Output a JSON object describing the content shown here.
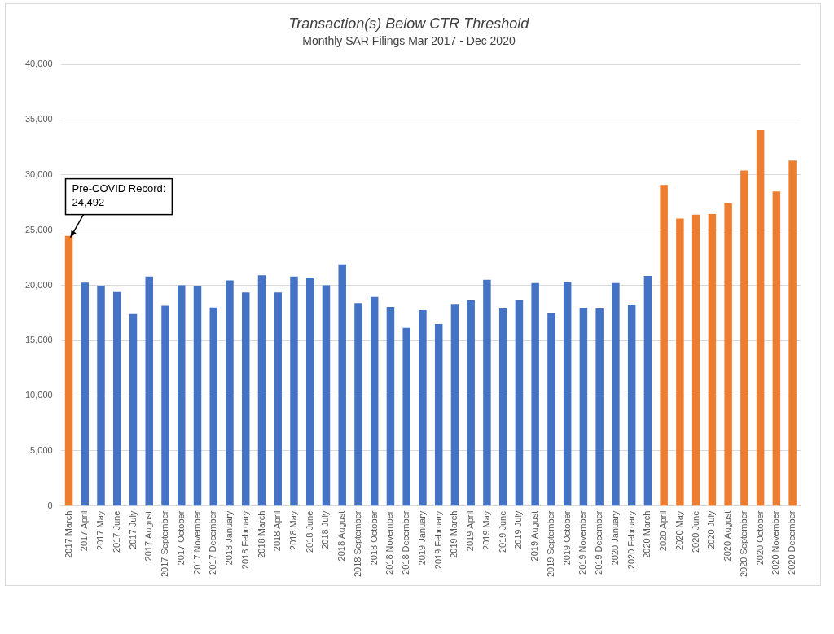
{
  "chart_data": {
    "type": "bar",
    "title": "Transaction(s) Below CTR Threshold",
    "subtitle": "Monthly SAR Filings Mar 2017 - Dec 2020",
    "categories": [
      "2017 March",
      "2017 April",
      "2017 May",
      "2017 June",
      "2017 July",
      "2017 August",
      "2017 September",
      "2017 October",
      "2017 November",
      "2017 December",
      "2018 January",
      "2018 February",
      "2018 March",
      "2018 April",
      "2018 May",
      "2018 June",
      "2018 July",
      "2018 August",
      "2018 September",
      "2018 October",
      "2018 November",
      "2018 December",
      "2019 January",
      "2019 February",
      "2019 March",
      "2019 April",
      "2019 May",
      "2019 June",
      "2019 July",
      "2019 August",
      "2019 September",
      "2019 October",
      "2019 November",
      "2019 December",
      "2020 January",
      "2020 February",
      "2020 March",
      "2020 April",
      "2020 May",
      "2020 June",
      "2020 July",
      "2020 August",
      "2020 September",
      "2020 October",
      "2020 November",
      "2020 December"
    ],
    "values": [
      24492,
      20250,
      19950,
      19400,
      17400,
      20800,
      18150,
      20000,
      19900,
      18000,
      20450,
      19350,
      20900,
      19350,
      20800,
      20700,
      20000,
      21900,
      18400,
      18950,
      18050,
      16150,
      17750,
      16500,
      18250,
      18650,
      20500,
      17900,
      18700,
      20200,
      17500,
      20300,
      17950,
      17900,
      20200,
      18200,
      20850,
      29100,
      26050,
      26400,
      26450,
      27450,
      30400,
      34050,
      28500,
      31300
    ],
    "colors": [
      "#ed7d31",
      "#4472c4",
      "#4472c4",
      "#4472c4",
      "#4472c4",
      "#4472c4",
      "#4472c4",
      "#4472c4",
      "#4472c4",
      "#4472c4",
      "#4472c4",
      "#4472c4",
      "#4472c4",
      "#4472c4",
      "#4472c4",
      "#4472c4",
      "#4472c4",
      "#4472c4",
      "#4472c4",
      "#4472c4",
      "#4472c4",
      "#4472c4",
      "#4472c4",
      "#4472c4",
      "#4472c4",
      "#4472c4",
      "#4472c4",
      "#4472c4",
      "#4472c4",
      "#4472c4",
      "#4472c4",
      "#4472c4",
      "#4472c4",
      "#4472c4",
      "#4472c4",
      "#4472c4",
      "#4472c4",
      "#ed7d31",
      "#ed7d31",
      "#ed7d31",
      "#ed7d31",
      "#ed7d31",
      "#ed7d31",
      "#ed7d31",
      "#ed7d31",
      "#ed7d31"
    ],
    "ylim": [
      0,
      40000
    ],
    "yticks": [
      0,
      {
        "value": 5000,
        "label": "5,000"
      },
      {
        "value": 10000,
        "label": "10,000"
      },
      {
        "value": 15000,
        "label": "15,000"
      },
      {
        "value": 20000,
        "label": "20,000"
      },
      {
        "value": 25000,
        "label": "25,000"
      },
      {
        "value": 30000,
        "label": "30,000"
      },
      {
        "value": 35000,
        "label": "35,000"
      },
      {
        "value": 40000,
        "label": "40,000"
      }
    ],
    "grid": true,
    "annotations": [
      {
        "text": [
          "Pre-COVID Record:",
          "24,492"
        ],
        "category": "2017 March",
        "value": 24492
      }
    ]
  }
}
